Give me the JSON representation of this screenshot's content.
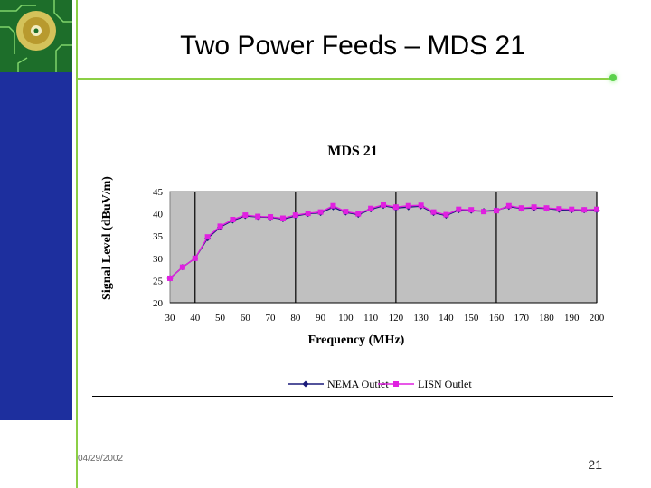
{
  "slide": {
    "title": "Two Power Feeds – MDS 21",
    "date": "04/29/2002",
    "page_number": "21"
  },
  "colors": {
    "sidebar": "#1d2f9e",
    "accent_green": "#8ccf45",
    "plot_bg": "#c0c0c0",
    "series_nema": "#1a1a7a",
    "series_lisn": "#e020e0"
  },
  "chart_data": {
    "type": "line",
    "title": "MDS 21",
    "xlabel": "Frequency (MHz)",
    "ylabel": "Signal Level (dBuV/m)",
    "xlim": [
      30,
      200
    ],
    "ylim": [
      20,
      45
    ],
    "xticks": [
      30,
      40,
      50,
      60,
      70,
      80,
      90,
      100,
      110,
      120,
      130,
      140,
      150,
      160,
      170,
      180,
      190,
      200
    ],
    "yticks": [
      20,
      25,
      30,
      35,
      40,
      45
    ],
    "grid": "vertical",
    "legend_position": "bottom",
    "series": [
      {
        "name": "NEMA Outlet",
        "x": [
          30,
          35,
          40,
          45,
          50,
          55,
          60,
          65,
          70,
          75,
          80,
          85,
          90,
          95,
          100,
          105,
          110,
          115,
          120,
          125,
          130,
          135,
          140,
          145,
          150,
          155,
          160,
          165,
          170,
          175,
          180,
          185,
          190,
          195,
          200
        ],
        "y": [
          25.5,
          28,
          30,
          34.5,
          37,
          38.5,
          39.5,
          39.3,
          39.2,
          38.8,
          39.5,
          40,
          40.2,
          41.5,
          40.3,
          39.8,
          41,
          41.8,
          41.3,
          41.5,
          41.7,
          40.2,
          39.6,
          40.8,
          40.7,
          40.6,
          40.8,
          41.6,
          41.2,
          41.3,
          41.2,
          40.9,
          40.8,
          40.8,
          40.8
        ]
      },
      {
        "name": "LISN Outlet",
        "x": [
          30,
          35,
          40,
          45,
          50,
          55,
          60,
          65,
          70,
          75,
          80,
          85,
          90,
          95,
          100,
          105,
          110,
          115,
          120,
          125,
          130,
          135,
          140,
          145,
          150,
          155,
          160,
          165,
          170,
          175,
          180,
          185,
          190,
          195,
          200
        ],
        "y": [
          25.5,
          28,
          30,
          34.8,
          37.2,
          38.7,
          39.7,
          39.4,
          39.3,
          39,
          39.7,
          40.1,
          40.4,
          41.8,
          40.5,
          40,
          41.2,
          42,
          41.5,
          41.8,
          41.9,
          40.4,
          39.8,
          41,
          40.9,
          40.5,
          40.7,
          41.8,
          41.3,
          41.5,
          41.3,
          41.1,
          41,
          40.9,
          41
        ]
      }
    ]
  }
}
